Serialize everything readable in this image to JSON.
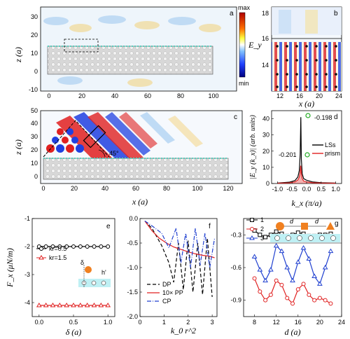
{
  "panels": {
    "a": {
      "label": "a",
      "ylabel": "z (a)",
      "colorbar_max": "max",
      "colorbar_min": "min",
      "colorbar_label": "E_y",
      "xticks": [
        "0",
        "20",
        "40",
        "60",
        "80",
        "100"
      ],
      "yticks": [
        "-10",
        "0",
        "10",
        "20",
        "30"
      ]
    },
    "b": {
      "label": "b",
      "xlabel": "x (a)",
      "xticks": [
        "12",
        "16",
        "20",
        "24"
      ],
      "yticks": [
        "14",
        "16",
        "18"
      ]
    },
    "c": {
      "label": "c",
      "ylabel": "z (a)",
      "xlabel": "x (a)",
      "angle": "45°",
      "xticks": [
        "0",
        "20",
        "40",
        "60",
        "80",
        "100",
        "120"
      ],
      "yticks": [
        "0",
        "10",
        "20",
        "30",
        "40",
        "50"
      ]
    },
    "d": {
      "label": "d",
      "ylabel": "|E_y (k_x)| (arb. units)",
      "xlabel": "k_x (π/a)",
      "peak1": "-0.198",
      "peak2": "-0.201",
      "xticks": [
        "-1.0",
        "-0.5",
        "0.0",
        "0.5",
        "1.0"
      ],
      "yticks": [
        "0",
        "10",
        "20",
        "30",
        "40"
      ]
    },
    "e": {
      "label": "e",
      "ylabel": "F_x (μN/m)",
      "xlabel": "δ (a)",
      "delta": "δ",
      "h": "h'",
      "xticks": [
        "0.0",
        "0.5",
        "1.0"
      ],
      "yticks": [
        "-1",
        "-2",
        "-3",
        "-4"
      ]
    },
    "f": {
      "label": "f",
      "xlabel": "k_0 r^2",
      "xticks": [
        "0",
        "1",
        "2",
        "3"
      ],
      "yticks": [
        "0.0",
        "-0.5",
        "-1.0",
        "-1.5",
        "-2.0"
      ]
    },
    "g": {
      "label": "g",
      "xlabel": "d (a)",
      "d1": "d",
      "d2": "d",
      "xticks": [
        "8",
        "12",
        "16",
        "20",
        "24"
      ],
      "yticks": [
        "-0.3",
        "-0.6",
        "-0.9"
      ]
    }
  },
  "chart_data": [
    {
      "panel": "d",
      "type": "line",
      "xlabel": "k_x (π/a)",
      "ylabel": "|E_y (k_x)| (arb. units)",
      "xlim": [
        -1.2,
        1.2
      ],
      "ylim": [
        0,
        45
      ],
      "series": [
        {
          "name": "LSs",
          "color": "#000000",
          "x": [
            -1.0,
            -0.6,
            -0.4,
            -0.3,
            -0.25,
            -0.22,
            -0.198,
            -0.18,
            -0.15,
            -0.1,
            0.0,
            0.2,
            0.5,
            1.0
          ],
          "y": [
            0.3,
            0.8,
            1.8,
            4,
            8,
            18,
            41,
            15,
            6,
            3,
            2,
            1,
            0.5,
            0.3
          ]
        },
        {
          "name": "prism",
          "color": "#e02020",
          "x": [
            -1.0,
            -0.6,
            -0.4,
            -0.3,
            -0.25,
            -0.22,
            -0.201,
            -0.18,
            -0.15,
            -0.1,
            0.0,
            0.2,
            0.5,
            1.0
          ],
          "y": [
            0.2,
            0.4,
            1.0,
            2.2,
            4,
            7,
            11,
            6,
            3,
            1.5,
            1,
            0.5,
            0.3,
            0.2
          ]
        }
      ]
    },
    {
      "panel": "e",
      "type": "line",
      "xlabel": "δ (a)",
      "ylabel": "F_x (μN/m)",
      "xlim": [
        -0.1,
        1.1
      ],
      "ylim": [
        -4.5,
        -1
      ],
      "series": [
        {
          "name": "kr=0.5",
          "color": "#000000",
          "marker": "circle",
          "x": [
            0,
            0.1,
            0.2,
            0.3,
            0.4,
            0.5,
            0.6,
            0.7,
            0.8,
            0.9,
            1.0
          ],
          "y": [
            -2.0,
            -2.0,
            -2.0,
            -2.0,
            -2.0,
            -2.0,
            -2.0,
            -2.0,
            -2.0,
            -2.0,
            -2.0
          ]
        },
        {
          "name": "kr=1.5",
          "color": "#e02020",
          "marker": "triangle",
          "x": [
            0,
            0.1,
            0.2,
            0.3,
            0.4,
            0.5,
            0.6,
            0.7,
            0.8,
            0.9,
            1.0
          ],
          "y": [
            -4.1,
            -4.1,
            -4.1,
            -4.1,
            -4.1,
            -4.1,
            -4.1,
            -4.1,
            -4.1,
            -4.1,
            -4.1
          ]
        }
      ]
    },
    {
      "panel": "f",
      "type": "line",
      "xlabel": "k_0 r^2",
      "xlim": [
        0,
        3.2
      ],
      "ylim": [
        -2.0,
        0.0
      ],
      "series": [
        {
          "name": "DP",
          "color": "#000000",
          "dash": "5,3",
          "x": [
            0.2,
            0.5,
            0.9,
            1.2,
            1.4,
            1.6,
            1.8,
            2.0,
            2.2,
            2.4,
            2.6,
            2.8,
            3.0
          ],
          "y": [
            -0.05,
            -0.2,
            -0.55,
            -0.9,
            -1.3,
            -0.5,
            -1.45,
            -0.45,
            -1.5,
            -0.5,
            -1.55,
            -0.4,
            -1.6
          ]
        },
        {
          "name": "10× PP",
          "color": "#e02020",
          "dash": "",
          "x": [
            0.2,
            0.5,
            0.8,
            1.1,
            1.4,
            1.7,
            2.0,
            2.3,
            2.6,
            2.9,
            3.1
          ],
          "y": [
            -0.05,
            -0.25,
            -0.4,
            -0.5,
            -0.58,
            -0.63,
            -0.68,
            -0.72,
            -0.75,
            -0.77,
            -0.8
          ]
        },
        {
          "name": "CP",
          "color": "#2040d0",
          "dash": "6,2,1,2",
          "x": [
            0.2,
            0.5,
            0.9,
            1.2,
            1.5,
            1.7,
            1.9,
            2.1,
            2.3,
            2.5,
            2.7,
            2.9,
            3.1
          ],
          "y": [
            -0.05,
            -0.15,
            -0.3,
            -0.6,
            -0.2,
            -0.9,
            -0.3,
            -1.0,
            -0.2,
            -0.95,
            -0.3,
            -1.0,
            -0.4
          ]
        }
      ]
    },
    {
      "panel": "g",
      "type": "line",
      "xlabel": "d (a)",
      "xlim": [
        6,
        24
      ],
      "ylim": [
        -1.05,
        -0.15
      ],
      "series": [
        {
          "name": "1",
          "color": "#000000",
          "marker": "square",
          "x": [
            8,
            9,
            10,
            11,
            12,
            13,
            14,
            15,
            16,
            17,
            18,
            19,
            20,
            21,
            22
          ],
          "y": [
            -0.26,
            -0.3,
            -0.32,
            -0.3,
            -0.27,
            -0.29,
            -0.31,
            -0.3,
            -0.28,
            -0.29,
            -0.31,
            -0.31,
            -0.3,
            -0.3,
            -0.29
          ]
        },
        {
          "name": "2",
          "color": "#e02020",
          "marker": "circle",
          "x": [
            8,
            9,
            10,
            11,
            12,
            13,
            14,
            15,
            16,
            17,
            18,
            19,
            20,
            21,
            22
          ],
          "y": [
            -0.7,
            -0.82,
            -0.9,
            -0.85,
            -0.72,
            -0.76,
            -0.88,
            -0.93,
            -0.8,
            -0.75,
            -0.85,
            -0.9,
            -0.88,
            -0.9,
            -0.93
          ]
        },
        {
          "name": "3",
          "color": "#2040d0",
          "marker": "triangle",
          "x": [
            8,
            9,
            10,
            11,
            12,
            13,
            14,
            15,
            16,
            17,
            18,
            19,
            20,
            21,
            22
          ],
          "y": [
            -0.5,
            -0.62,
            -0.72,
            -0.62,
            -0.4,
            -0.45,
            -0.6,
            -0.72,
            -0.55,
            -0.42,
            -0.52,
            -0.68,
            -0.75,
            -0.6,
            -0.45
          ]
        }
      ]
    }
  ]
}
